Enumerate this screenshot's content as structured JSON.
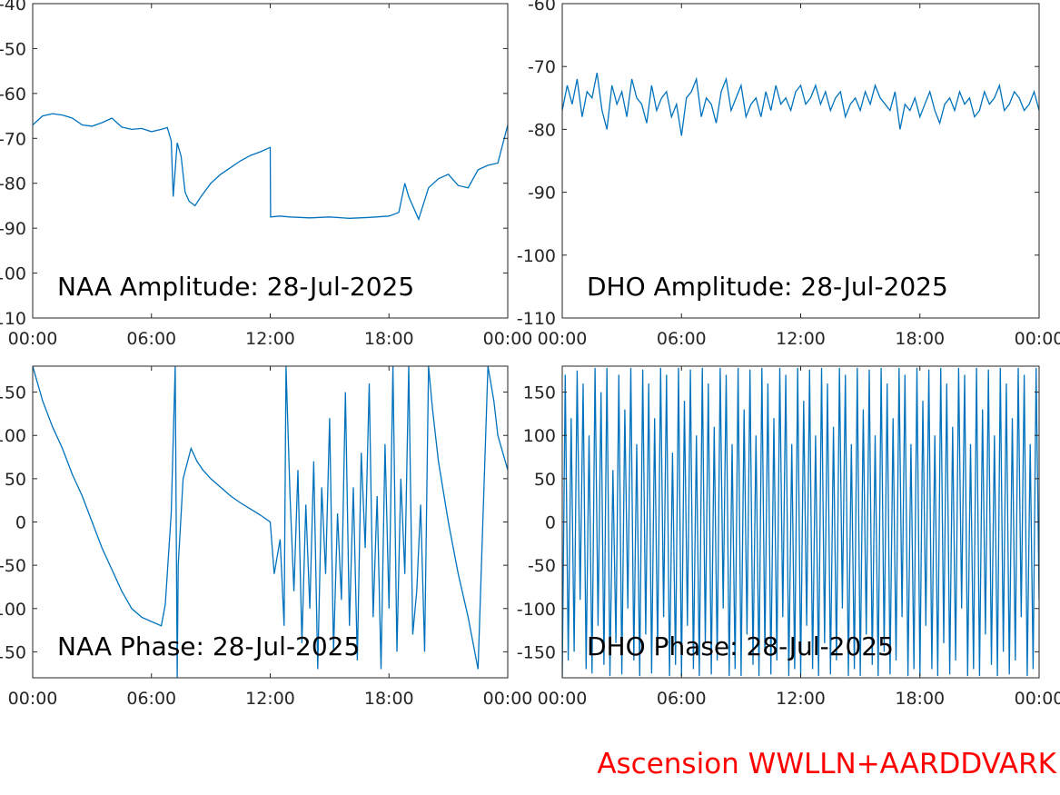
{
  "credit": {
    "text": "Ascension WWLLN+AARDDVARK",
    "color": "#ff0000"
  },
  "chart_data": [
    {
      "type": "line",
      "title": "NAA Amplitude: 28-Jul-2025",
      "color": "#0072bd",
      "xlim": [
        0,
        24
      ],
      "ylim": [
        -110,
        -40
      ],
      "xticks": [
        0,
        6,
        12,
        18,
        24
      ],
      "xtick_labels": [
        "00:00",
        "06:00",
        "12:00",
        "18:00",
        "00:00"
      ],
      "yticks": [
        -110,
        -100,
        -90,
        -80,
        -70,
        -60,
        -50,
        -40
      ],
      "ytick_labels": [
        "-110",
        "-100",
        "-90",
        "-80",
        "-70",
        "-60",
        "-50",
        "-40"
      ],
      "grid": false,
      "series": [
        {
          "x": [
            0,
            0.5,
            1,
            1.5,
            2,
            2.5,
            3,
            3.5,
            4,
            4.5,
            5,
            5.5,
            6,
            6.5,
            6.8,
            7,
            7.1,
            7.3,
            7.5,
            7.7,
            7.9,
            8.2,
            8.5,
            9,
            9.5,
            10,
            10.5,
            11,
            11.5,
            12,
            12.02,
            12.5,
            13,
            14,
            15,
            16,
            17,
            18,
            18.5,
            18.8,
            19,
            19.5,
            20,
            20.5,
            21,
            21.5,
            22,
            22.5,
            23,
            23.5,
            24
          ],
          "y": [
            -67,
            -65,
            -64.5,
            -64.8,
            -65.5,
            -67,
            -67.3,
            -66.5,
            -65.5,
            -67.5,
            -68,
            -67.8,
            -68.5,
            -68,
            -67.6,
            -70.5,
            -83,
            -71,
            -74,
            -82,
            -84,
            -85,
            -83,
            -80,
            -78,
            -76.5,
            -75,
            -73.8,
            -73,
            -72,
            -87.5,
            -87.3,
            -87.5,
            -87.7,
            -87.5,
            -87.8,
            -87.6,
            -87.3,
            -86.5,
            -80,
            -83,
            -88,
            -81,
            -79,
            -78,
            -80.5,
            -81,
            -77,
            -76,
            -75.5,
            -67
          ]
        }
      ]
    },
    {
      "type": "line",
      "title": "DHO Amplitude: 28-Jul-2025",
      "color": "#0072bd",
      "xlim": [
        0,
        24
      ],
      "ylim": [
        -110,
        -60
      ],
      "xticks": [
        0,
        6,
        12,
        18,
        24
      ],
      "xtick_labels": [
        "00:00",
        "06:00",
        "12:00",
        "18:00",
        "00:00"
      ],
      "yticks": [
        -110,
        -100,
        -90,
        -80,
        -70,
        -60
      ],
      "ytick_labels": [
        "-110",
        "-100",
        "-90",
        "-80",
        "-70",
        "-60"
      ],
      "grid": false,
      "series": [
        {
          "x": [
            0,
            0.25,
            0.5,
            0.75,
            1,
            1.25,
            1.5,
            1.75,
            2,
            2.25,
            2.5,
            2.75,
            3,
            3.25,
            3.5,
            3.75,
            4,
            4.25,
            4.5,
            4.75,
            5,
            5.25,
            5.5,
            5.75,
            6,
            6.25,
            6.5,
            6.75,
            7,
            7.25,
            7.5,
            7.75,
            8,
            8.25,
            8.5,
            8.75,
            9,
            9.25,
            9.5,
            9.75,
            10,
            10.25,
            10.5,
            10.75,
            11,
            11.25,
            11.5,
            11.75,
            12,
            12.25,
            12.5,
            12.75,
            13,
            13.25,
            13.5,
            13.75,
            14,
            14.25,
            14.5,
            14.75,
            15,
            15.25,
            15.5,
            15.75,
            16,
            16.25,
            16.5,
            16.75,
            17,
            17.25,
            17.5,
            17.75,
            18,
            18.25,
            18.5,
            18.75,
            19,
            19.25,
            19.5,
            19.75,
            20,
            20.25,
            20.5,
            20.75,
            21,
            21.25,
            21.5,
            21.75,
            22,
            22.25,
            22.5,
            22.75,
            23,
            23.25,
            23.5,
            23.75,
            24
          ],
          "y": [
            -77,
            -73,
            -76,
            -72,
            -78,
            -74,
            -75,
            -71,
            -77,
            -80,
            -73,
            -76,
            -74,
            -78,
            -72,
            -75,
            -76,
            -79,
            -73,
            -77,
            -75,
            -74,
            -78,
            -76,
            -81,
            -75,
            -74,
            -72,
            -78,
            -75,
            -76,
            -79,
            -74,
            -72,
            -77,
            -75,
            -73,
            -78,
            -76,
            -75,
            -78,
            -74,
            -77,
            -73,
            -76,
            -75,
            -77,
            -74,
            -73,
            -76,
            -75,
            -73,
            -76,
            -74,
            -77,
            -75,
            -74,
            -78,
            -76,
            -75,
            -77,
            -74,
            -76,
            -73,
            -75,
            -76,
            -77,
            -74,
            -80,
            -76,
            -77,
            -75,
            -78,
            -76,
            -74,
            -77,
            -79,
            -76,
            -75,
            -77,
            -74,
            -76,
            -75,
            -78,
            -77,
            -74,
            -76,
            -75,
            -73,
            -77,
            -76,
            -74,
            -75,
            -77,
            -76,
            -74,
            -77
          ]
        }
      ]
    },
    {
      "type": "line",
      "title": "NAA Phase: 28-Jul-2025",
      "color": "#0072bd",
      "xlim": [
        0,
        24
      ],
      "ylim": [
        -180,
        180
      ],
      "xticks": [
        0,
        6,
        12,
        18,
        24
      ],
      "xtick_labels": [
        "00:00",
        "06:00",
        "12:00",
        "18:00",
        "00:00"
      ],
      "yticks": [
        -150,
        -100,
        -50,
        0,
        50,
        100,
        150
      ],
      "ytick_labels": [
        "-150",
        "-100",
        "-50",
        "0",
        "50",
        "100",
        "150"
      ],
      "grid": false,
      "series": [
        {
          "x": [
            0,
            0.5,
            1,
            1.5,
            2,
            2.5,
            3,
            3.5,
            4,
            4.5,
            5,
            5.5,
            6,
            6.5,
            6.7,
            7,
            7.2,
            7.3,
            7.35,
            7.6,
            8,
            8.3,
            8.6,
            9,
            9.5,
            10,
            10.5,
            11,
            11.5,
            12,
            12.2,
            12.5,
            12.7,
            12.8,
            13,
            13.2,
            13.4,
            13.6,
            13.8,
            14,
            14.2,
            14.4,
            14.6,
            14.8,
            15,
            15.2,
            15.4,
            15.6,
            15.8,
            16,
            16.2,
            16.4,
            16.6,
            16.8,
            17,
            17.2,
            17.4,
            17.6,
            17.8,
            18,
            18.2,
            18.4,
            18.6,
            18.8,
            19,
            19.2,
            19.4,
            19.6,
            19.8,
            20,
            20.2,
            20.5,
            21,
            21.5,
            22,
            22.5,
            23,
            23.3,
            23.5,
            24
          ],
          "y": [
            180,
            140,
            110,
            85,
            55,
            30,
            0,
            -30,
            -55,
            -80,
            -100,
            -110,
            -115,
            -120,
            -95,
            10,
            180,
            -180,
            -50,
            50,
            85,
            70,
            60,
            50,
            40,
            30,
            22,
            15,
            8,
            0,
            -60,
            -20,
            -120,
            180,
            30,
            -80,
            60,
            -140,
            20,
            -100,
            70,
            -170,
            40,
            -60,
            120,
            -150,
            10,
            -90,
            150,
            -120,
            40,
            -160,
            80,
            -30,
            160,
            -110,
            30,
            -170,
            90,
            -100,
            180,
            -150,
            50,
            -60,
            180,
            -130,
            -80,
            20,
            -150,
            180,
            130,
            70,
            0,
            -60,
            -110,
            -170,
            180,
            140,
            100,
            60
          ]
        }
      ]
    },
    {
      "type": "line",
      "title": "DHO Phase: 28-Jul-2025",
      "color": "#0072bd",
      "xlim": [
        0,
        24
      ],
      "ylim": [
        -180,
        180
      ],
      "xticks": [
        0,
        6,
        12,
        18,
        24
      ],
      "xtick_labels": [
        "00:00",
        "06:00",
        "12:00",
        "18:00",
        "00:00"
      ],
      "yticks": [
        -150,
        -100,
        -50,
        0,
        50,
        100,
        150
      ],
      "ytick_labels": [
        "-150",
        "-100",
        "-50",
        "0",
        "50",
        "100",
        "150"
      ],
      "grid": false,
      "series": [
        {
          "x": [
            0,
            0.15,
            0.3,
            0.45,
            0.6,
            0.75,
            0.9,
            1.05,
            1.2,
            1.35,
            1.5,
            1.65,
            1.8,
            1.95,
            2.1,
            2.25,
            2.4,
            2.55,
            2.7,
            2.85,
            3,
            3.15,
            3.3,
            3.45,
            3.6,
            3.75,
            3.9,
            4.05,
            4.2,
            4.35,
            4.5,
            4.65,
            4.8,
            4.95,
            5.1,
            5.25,
            5.4,
            5.55,
            5.7,
            5.85,
            6,
            6.15,
            6.3,
            6.45,
            6.6,
            6.75,
            6.9,
            7.05,
            7.2,
            7.35,
            7.5,
            7.65,
            7.8,
            7.95,
            8.1,
            8.25,
            8.4,
            8.55,
            8.7,
            8.85,
            9,
            9.15,
            9.3,
            9.45,
            9.6,
            9.75,
            9.9,
            10.05,
            10.2,
            10.35,
            10.5,
            10.65,
            10.8,
            10.95,
            11.1,
            11.25,
            11.4,
            11.55,
            11.7,
            11.85,
            12,
            12.15,
            12.3,
            12.45,
            12.6,
            12.75,
            12.9,
            13.05,
            13.2,
            13.35,
            13.5,
            13.65,
            13.8,
            13.95,
            14.1,
            14.25,
            14.4,
            14.55,
            14.7,
            14.85,
            15,
            15.15,
            15.3,
            15.45,
            15.6,
            15.75,
            15.9,
            16.05,
            16.2,
            16.35,
            16.5,
            16.65,
            16.8,
            16.95,
            17.1,
            17.25,
            17.4,
            17.55,
            17.7,
            17.85,
            18,
            18.15,
            18.3,
            18.45,
            18.6,
            18.75,
            18.9,
            19.05,
            19.2,
            19.35,
            19.5,
            19.65,
            19.8,
            19.95,
            20.1,
            20.25,
            20.4,
            20.55,
            20.7,
            20.85,
            21,
            21.15,
            21.3,
            21.45,
            21.6,
            21.75,
            21.9,
            22.05,
            22.2,
            22.35,
            22.5,
            22.65,
            22.8,
            22.95,
            23.1,
            23.25,
            23.4,
            23.55,
            23.7,
            23.85,
            24
          ],
          "y": [
            -180,
            170,
            -160,
            120,
            -150,
            175,
            -90,
            160,
            -170,
            100,
            -175,
            178,
            -120,
            150,
            -165,
            178,
            -178,
            60,
            -140,
            170,
            -176,
            130,
            -100,
            178,
            -160,
            90,
            -178,
            176,
            -130,
            160,
            -175,
            120,
            -150,
            178,
            -110,
            170,
            -178,
            80,
            -165,
            178,
            -178,
            140,
            -120,
            176,
            -170,
            100,
            -178,
            178,
            -140,
            160,
            -176,
            110,
            -160,
            178,
            -100,
            170,
            -178,
            90,
            -170,
            178,
            -178,
            130,
            -130,
            176,
            -165,
            100,
            -178,
            178,
            -150,
            160,
            -176,
            120,
            -160,
            178,
            -110,
            170,
            -178,
            90,
            -170,
            178,
            -178,
            140,
            -120,
            176,
            -170,
            100,
            -178,
            178,
            -140,
            160,
            -176,
            110,
            -160,
            178,
            -100,
            170,
            -178,
            90,
            -170,
            178,
            -178,
            130,
            -130,
            176,
            -165,
            100,
            -178,
            178,
            -150,
            160,
            -176,
            120,
            -160,
            178,
            -110,
            170,
            -178,
            90,
            -170,
            178,
            -178,
            140,
            -120,
            176,
            -170,
            100,
            -178,
            178,
            -140,
            160,
            -176,
            110,
            -160,
            178,
            -100,
            170,
            -178,
            90,
            -170,
            178,
            -178,
            130,
            -130,
            176,
            -165,
            100,
            -178,
            178,
            -150,
            160,
            -176,
            120,
            -160,
            178,
            -110,
            170,
            -178,
            90,
            -170,
            178,
            -90
          ]
        }
      ]
    }
  ]
}
